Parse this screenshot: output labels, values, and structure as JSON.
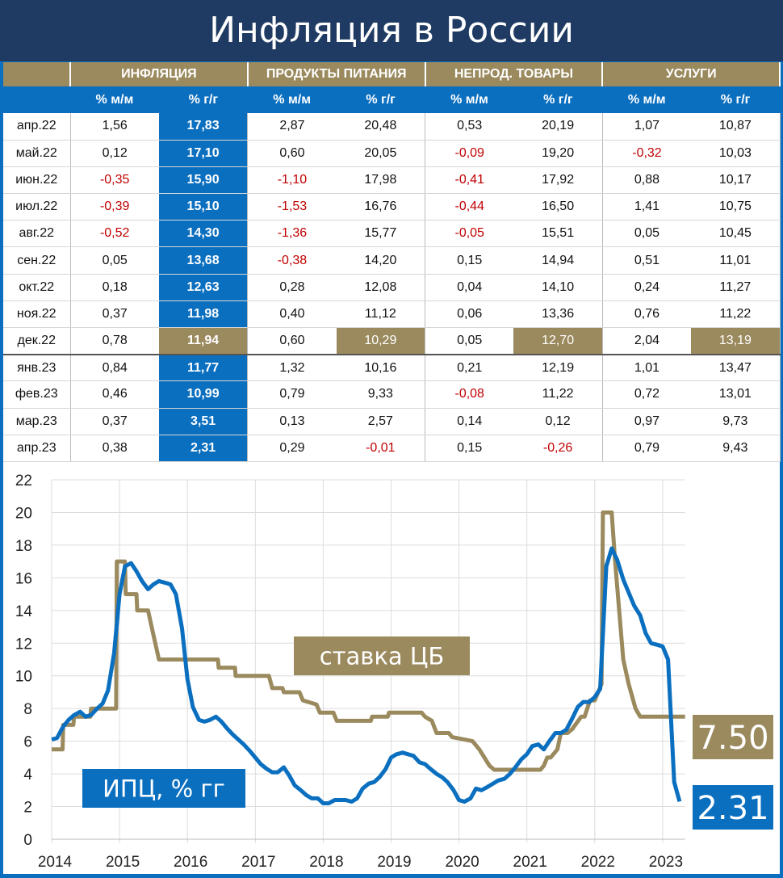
{
  "title": "Инфляция в России",
  "table": {
    "groups": [
      "ИНФЛЯЦИЯ",
      "ПРОДУКТЫ ПИТАНИЯ",
      "НЕПРОД. ТОВАРЫ",
      "УСЛУГИ"
    ],
    "subheaders": [
      "% м/м",
      "% г/г",
      "% м/м",
      "% г/г",
      "% м/м",
      "% г/г",
      "% м/м",
      "% г/г"
    ],
    "rows": [
      [
        "апр.22",
        "1,56",
        "17,83",
        "2,87",
        "20,48",
        "0,53",
        "20,19",
        "1,07",
        "10,87"
      ],
      [
        "май.22",
        "0,12",
        "17,10",
        "0,60",
        "20,05",
        "-0,09",
        "19,20",
        "-0,32",
        "10,03"
      ],
      [
        "июн.22",
        "-0,35",
        "15,90",
        "-1,10",
        "17,98",
        "-0,41",
        "17,92",
        "0,88",
        "10,17"
      ],
      [
        "июл.22",
        "-0,39",
        "15,10",
        "-1,53",
        "16,76",
        "-0,44",
        "16,50",
        "1,41",
        "10,75"
      ],
      [
        "авг.22",
        "-0,52",
        "14,30",
        "-1,36",
        "15,77",
        "-0,05",
        "15,51",
        "0,05",
        "10,45"
      ],
      [
        "сен.22",
        "0,05",
        "13,68",
        "-0,38",
        "14,20",
        "0,15",
        "14,94",
        "0,51",
        "11,01"
      ],
      [
        "окт.22",
        "0,18",
        "12,63",
        "0,28",
        "12,08",
        "0,04",
        "14,10",
        "0,24",
        "11,27"
      ],
      [
        "ноя.22",
        "0,37",
        "11,98",
        "0,40",
        "11,12",
        "0,06",
        "13,36",
        "0,76",
        "11,22"
      ],
      [
        "дек.22",
        "0,78",
        "11,94",
        "0,60",
        "10,29",
        "0,05",
        "12,70",
        "2,04",
        "13,19"
      ],
      [
        "янв.23",
        "0,84",
        "11,77",
        "1,32",
        "10,16",
        "0,21",
        "12,19",
        "1,01",
        "13,47"
      ],
      [
        "фев.23",
        "0,46",
        "10,99",
        "0,79",
        "9,33",
        "-0,08",
        "11,22",
        "0,72",
        "13,01"
      ],
      [
        "мар.23",
        "0,37",
        "3,51",
        "0,13",
        "2,57",
        "0,14",
        "0,12",
        "0,97",
        "9,73"
      ],
      [
        "апр.23",
        "0,38",
        "2,31",
        "0,29",
        "-0,01",
        "0,15",
        "-0,26",
        "0,79",
        "9,43"
      ]
    ],
    "highlight_row": "дек.22"
  },
  "colors": {
    "blue": "#0b6fc0",
    "gold": "#9b8a5e",
    "navy": "#1f3b63",
    "negative": "#c00000"
  },
  "chart_data": {
    "type": "line",
    "xlabel": "",
    "ylabel": "",
    "xlim": [
      2014,
      2023.33
    ],
    "ylim": [
      0,
      22
    ],
    "yticks": [
      0,
      2,
      4,
      6,
      8,
      10,
      12,
      14,
      16,
      18,
      20,
      22
    ],
    "xticks": [
      2014,
      2015,
      2016,
      2017,
      2018,
      2019,
      2020,
      2021,
      2022,
      2023
    ],
    "grid": true,
    "series": [
      {
        "name": "ИПЦ, % гг",
        "color": "#0b6fc0",
        "end_label": "2.31",
        "x": [
          2014,
          2014.08,
          2014.17,
          2014.25,
          2014.33,
          2014.42,
          2014.5,
          2014.58,
          2014.67,
          2014.75,
          2014.83,
          2014.92,
          2015,
          2015.08,
          2015.17,
          2015.25,
          2015.33,
          2015.42,
          2015.5,
          2015.58,
          2015.67,
          2015.75,
          2015.83,
          2015.92,
          2016,
          2016.08,
          2016.17,
          2016.25,
          2016.33,
          2016.42,
          2016.5,
          2016.58,
          2016.67,
          2016.75,
          2016.83,
          2016.92,
          2017,
          2017.08,
          2017.17,
          2017.25,
          2017.33,
          2017.42,
          2017.5,
          2017.58,
          2017.67,
          2017.75,
          2017.83,
          2017.92,
          2018,
          2018.08,
          2018.17,
          2018.25,
          2018.33,
          2018.42,
          2018.5,
          2018.58,
          2018.67,
          2018.75,
          2018.83,
          2018.92,
          2019,
          2019.08,
          2019.17,
          2019.25,
          2019.33,
          2019.42,
          2019.5,
          2019.58,
          2019.67,
          2019.75,
          2019.83,
          2019.92,
          2020,
          2020.08,
          2020.17,
          2020.25,
          2020.33,
          2020.42,
          2020.5,
          2020.58,
          2020.67,
          2020.75,
          2020.83,
          2020.92,
          2021,
          2021.08,
          2021.17,
          2021.25,
          2021.33,
          2021.42,
          2021.5,
          2021.58,
          2021.67,
          2021.75,
          2021.83,
          2021.92,
          2022,
          2022.08,
          2022.17,
          2022.25,
          2022.33,
          2022.42,
          2022.5,
          2022.58,
          2022.67,
          2022.75,
          2022.83,
          2022.92,
          2023,
          2023.08,
          2023.17,
          2023.25
        ],
        "values": [
          6.1,
          6.2,
          6.9,
          7.3,
          7.6,
          7.8,
          7.5,
          7.6,
          8.0,
          8.3,
          9.1,
          11.4,
          15.0,
          16.7,
          16.9,
          16.4,
          15.8,
          15.3,
          15.6,
          15.8,
          15.7,
          15.6,
          15.0,
          12.9,
          9.8,
          8.1,
          7.3,
          7.2,
          7.3,
          7.5,
          7.2,
          6.8,
          6.4,
          6.1,
          5.8,
          5.4,
          5.0,
          4.6,
          4.3,
          4.1,
          4.1,
          4.4,
          3.9,
          3.3,
          3.0,
          2.7,
          2.5,
          2.5,
          2.2,
          2.2,
          2.4,
          2.4,
          2.4,
          2.3,
          2.5,
          3.1,
          3.4,
          3.5,
          3.8,
          4.3,
          5.0,
          5.2,
          5.3,
          5.2,
          5.1,
          4.7,
          4.6,
          4.3,
          4.0,
          3.8,
          3.5,
          3.0,
          2.4,
          2.3,
          2.5,
          3.1,
          3.0,
          3.2,
          3.4,
          3.6,
          3.7,
          4.0,
          4.4,
          4.9,
          5.2,
          5.7,
          5.8,
          5.5,
          6.0,
          6.5,
          6.5,
          6.7,
          7.4,
          8.1,
          8.4,
          8.4,
          8.7,
          9.2,
          16.7,
          17.8,
          17.1,
          15.9,
          15.1,
          14.3,
          13.7,
          12.6,
          12.0,
          11.9,
          11.8,
          11.0,
          3.5,
          2.31
        ]
      },
      {
        "name": "ставка ЦБ",
        "color": "#9b8a5e",
        "end_label": "7.50",
        "x": [
          2014,
          2014.16,
          2014.17,
          2014.32,
          2014.33,
          2014.57,
          2014.58,
          2014.82,
          2014.83,
          2014.95,
          2014.96,
          2015.08,
          2015.09,
          2015.25,
          2015.26,
          2015.42,
          2015.5,
          2015.58,
          2016.45,
          2016.46,
          2016.7,
          2016.71,
          2017.2,
          2017.25,
          2017.4,
          2017.42,
          2017.65,
          2017.7,
          2017.9,
          2017.95,
          2018.15,
          2018.2,
          2018.7,
          2018.72,
          2018.95,
          2018.97,
          2019.45,
          2019.5,
          2019.6,
          2019.67,
          2019.85,
          2019.9,
          2020.2,
          2020.3,
          2020.45,
          2020.52,
          2021.2,
          2021.25,
          2021.3,
          2021.35,
          2021.45,
          2021.5,
          2021.6,
          2021.67,
          2021.8,
          2021.85,
          2021.93,
          2022.0,
          2022.1,
          2022.12,
          2022.25,
          2022.3,
          2022.42,
          2022.5,
          2022.6,
          2022.67,
          2023.33
        ],
        "values": [
          5.5,
          5.5,
          7.0,
          7.0,
          7.5,
          7.5,
          8.0,
          8.0,
          8.0,
          8.0,
          17.0,
          17.0,
          15.0,
          15.0,
          14.0,
          14.0,
          12.5,
          11.0,
          11.0,
          10.5,
          10.5,
          10.0,
          10.0,
          9.25,
          9.25,
          9.0,
          9.0,
          8.5,
          8.25,
          7.75,
          7.75,
          7.25,
          7.25,
          7.5,
          7.5,
          7.75,
          7.75,
          7.5,
          7.25,
          6.5,
          6.5,
          6.25,
          6.0,
          5.5,
          4.5,
          4.25,
          4.25,
          4.5,
          5.0,
          5.0,
          5.5,
          6.5,
          6.5,
          6.75,
          7.5,
          7.5,
          8.5,
          8.5,
          9.5,
          20.0,
          20.0,
          17.0,
          11.0,
          9.5,
          8.0,
          7.5,
          7.5
        ]
      }
    ]
  }
}
